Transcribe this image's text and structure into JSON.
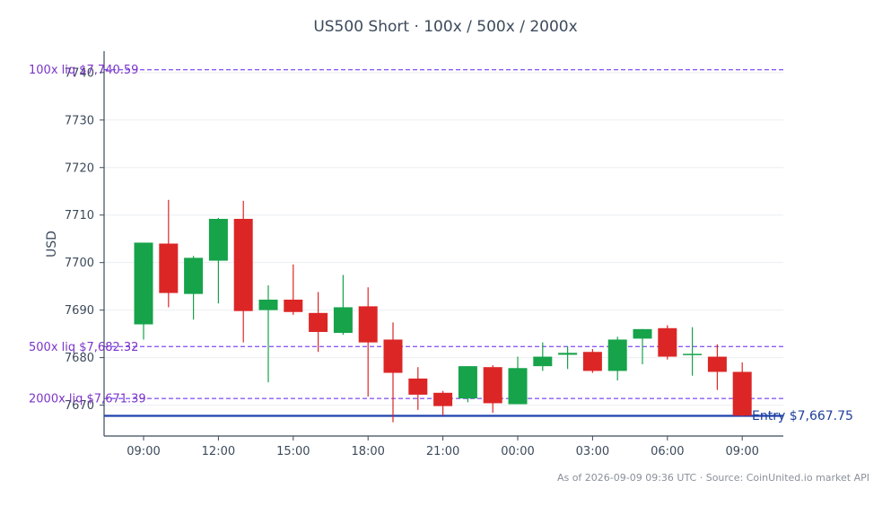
{
  "chart_data": {
    "type": "candlestick",
    "title": "US500 Short · 100x / 500x / 2000x",
    "ylabel": "USD",
    "ylim": [
      7663.5,
      7744.5
    ],
    "yticks": [
      7670,
      7680,
      7690,
      7700,
      7710,
      7720,
      7730,
      7740
    ],
    "xtick_labels": [
      "09:00",
      "12:00",
      "15:00",
      "18:00",
      "21:00",
      "00:00",
      "03:00",
      "06:00",
      "09:00"
    ],
    "xtick_indices": [
      0,
      3,
      6,
      9,
      12,
      15,
      18,
      21,
      24
    ],
    "candles": [
      {
        "open": 7687.0,
        "high": 7704.2,
        "low": 7683.8,
        "close": 7704.2
      },
      {
        "open": 7704.0,
        "high": 7713.2,
        "low": 7690.6,
        "close": 7693.6
      },
      {
        "open": 7693.4,
        "high": 7701.4,
        "low": 7688.0,
        "close": 7701.0
      },
      {
        "open": 7700.4,
        "high": 7709.4,
        "low": 7691.4,
        "close": 7709.2
      },
      {
        "open": 7709.2,
        "high": 7713.0,
        "low": 7683.2,
        "close": 7689.8
      },
      {
        "open": 7690.0,
        "high": 7695.2,
        "low": 7674.8,
        "close": 7692.2
      },
      {
        "open": 7692.2,
        "high": 7699.6,
        "low": 7689.0,
        "close": 7689.6
      },
      {
        "open": 7689.4,
        "high": 7693.8,
        "low": 7681.2,
        "close": 7685.4
      },
      {
        "open": 7685.2,
        "high": 7697.4,
        "low": 7684.8,
        "close": 7690.6
      },
      {
        "open": 7690.8,
        "high": 7694.8,
        "low": 7671.8,
        "close": 7683.2
      },
      {
        "open": 7683.8,
        "high": 7687.4,
        "low": 7666.4,
        "close": 7676.8
      },
      {
        "open": 7675.6,
        "high": 7678.0,
        "low": 7669.0,
        "close": 7672.2
      },
      {
        "open": 7672.6,
        "high": 7673.0,
        "low": 7667.8,
        "close": 7669.8
      },
      {
        "open": 7671.4,
        "high": 7678.2,
        "low": 7670.6,
        "close": 7678.2
      },
      {
        "open": 7678.0,
        "high": 7678.4,
        "low": 7668.4,
        "close": 7670.4
      },
      {
        "open": 7670.2,
        "high": 7680.2,
        "low": 7670.2,
        "close": 7677.8
      },
      {
        "open": 7678.2,
        "high": 7683.2,
        "low": 7677.2,
        "close": 7680.2
      },
      {
        "open": 7680.6,
        "high": 7682.4,
        "low": 7677.6,
        "close": 7681.0
      },
      {
        "open": 7681.2,
        "high": 7681.8,
        "low": 7676.8,
        "close": 7677.2
      },
      {
        "open": 7677.2,
        "high": 7684.4,
        "low": 7675.2,
        "close": 7683.8
      },
      {
        "open": 7684.0,
        "high": 7686.0,
        "low": 7678.6,
        "close": 7686.0
      },
      {
        "open": 7686.2,
        "high": 7686.8,
        "low": 7679.6,
        "close": 7680.2
      },
      {
        "open": 7680.6,
        "high": 7686.4,
        "low": 7676.2,
        "close": 7680.8
      },
      {
        "open": 7680.2,
        "high": 7682.8,
        "low": 7673.2,
        "close": 7677.0
      },
      {
        "open": 7677.0,
        "high": 7679.0,
        "low": 7667.6,
        "close": 7667.8
      }
    ],
    "up_color": "#16a34a",
    "down_color": "#dc2626",
    "lines": [
      {
        "label": "100x liq $7,740.59",
        "value": 7740.59,
        "color": "#8b5cf6",
        "style": "dashed"
      },
      {
        "label": "500x liq $7,682.32",
        "value": 7682.32,
        "color": "#8b5cf6",
        "style": "dashed"
      },
      {
        "label": "2000x liq $7,671.39",
        "value": 7671.39,
        "color": "#8b5cf6",
        "style": "dashed"
      },
      {
        "label": "Entry $7,667.75",
        "value": 7667.75,
        "color": "#1e40af",
        "style": "solid"
      }
    ],
    "grid": true,
    "legend": "none"
  },
  "footer": "As of 2026-09-09 09:36 UTC · Source: CoinUnited.io market API"
}
